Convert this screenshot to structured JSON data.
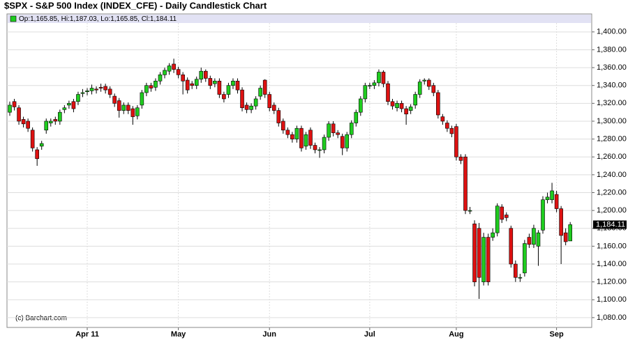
{
  "chart_data": {
    "type": "candlestick",
    "title": "$SPX - S&P 500 Index (INDEX_CFE) - Daily Candlestick Chart",
    "legend_text": "Op:1,165.85, Hi:1,187.03, Lo:1,165.85, Cl:1,184.11",
    "credit": "(c) Barchart.com",
    "last_label": "1,184.11",
    "up_color": "#1fcc1f",
    "down_color": "#dd1111",
    "grid": true,
    "ylim": [
      1069,
      1410
    ],
    "yticks": [
      {
        "value": 1080,
        "label": "1,080.00"
      },
      {
        "value": 1100,
        "label": "1,100.00"
      },
      {
        "value": 1120,
        "label": "1,120.00"
      },
      {
        "value": 1140,
        "label": "1,140.00"
      },
      {
        "value": 1160,
        "label": "1,160.00"
      },
      {
        "value": 1180,
        "label": "1,180.00"
      },
      {
        "value": 1200,
        "label": "1,200.00"
      },
      {
        "value": 1220,
        "label": "1,220.00"
      },
      {
        "value": 1240,
        "label": "1,240.00"
      },
      {
        "value": 1260,
        "label": "1,260.00"
      },
      {
        "value": 1280,
        "label": "1,280.00"
      },
      {
        "value": 1300,
        "label": "1,300.00"
      },
      {
        "value": 1320,
        "label": "1,320.00"
      },
      {
        "value": 1340,
        "label": "1,340.00"
      },
      {
        "value": 1360,
        "label": "1,360.00"
      },
      {
        "value": 1380,
        "label": "1,380.00"
      },
      {
        "value": 1400,
        "label": "1,400.00"
      }
    ],
    "categories": [
      null,
      null,
      null,
      null,
      null,
      null,
      null,
      null,
      null,
      null,
      null,
      null,
      null,
      null,
      null,
      null,
      null,
      "Apr 11",
      null,
      null,
      null,
      null,
      null,
      null,
      null,
      null,
      null,
      null,
      null,
      null,
      null,
      null,
      null,
      null,
      null,
      null,
      null,
      "May",
      null,
      null,
      null,
      null,
      null,
      null,
      null,
      null,
      null,
      null,
      null,
      null,
      null,
      null,
      null,
      null,
      null,
      null,
      null,
      "Jun",
      null,
      null,
      null,
      null,
      null,
      null,
      null,
      null,
      null,
      null,
      null,
      null,
      null,
      null,
      null,
      null,
      null,
      null,
      null,
      null,
      null,
      "Jul",
      null,
      null,
      null,
      null,
      null,
      null,
      null,
      null,
      null,
      null,
      null,
      null,
      null,
      null,
      null,
      null,
      null,
      null,
      "Aug",
      null,
      null,
      null,
      null,
      null,
      null,
      null,
      null,
      null,
      null,
      null,
      null,
      null,
      null,
      null,
      null,
      null,
      null,
      null,
      null,
      null,
      "Sep",
      null,
      null,
      null
    ],
    "open": [
      1310,
      1322,
      1315,
      1302,
      1300,
      1290,
      1268,
      1272,
      1290,
      1298,
      1302,
      1300,
      1313,
      1318,
      1322,
      1322,
      1331,
      1333,
      1334,
      1336,
      1338,
      1339,
      1336,
      1328,
      1323,
      1312,
      1318,
      1314,
      1306,
      1318,
      1332,
      1340,
      1338,
      1345,
      1352,
      1356,
      1364,
      1358,
      1352,
      1346,
      1342,
      1340,
      1347,
      1356,
      1348,
      1342,
      1345,
      1330,
      1330,
      1340,
      1345,
      1335,
      1318,
      1313,
      1317,
      1328,
      1346,
      1330,
      1318,
      1312,
      1300,
      1290,
      1285,
      1280,
      1292,
      1272,
      1290,
      1273,
      1268,
      1268,
      1282,
      1297,
      1287,
      1283,
      1270,
      1285,
      1298,
      1310,
      1325,
      1340,
      1340,
      1343,
      1355,
      1342,
      1322,
      1315,
      1320,
      1314,
      1312,
      1318,
      1330,
      1345,
      1346,
      1340,
      1332,
      1305,
      1298,
      1292,
      1294,
      1260,
      1260,
      1200,
      1185,
      1180,
      1120,
      1170,
      1170,
      1175,
      1204,
      1195,
      1180,
      1140,
      1125,
      1130,
      1170,
      1162,
      1160,
      1178,
      1212,
      1212,
      1218,
      1202,
      1175,
      1165.85
    ],
    "high": [
      1322,
      1325,
      1318,
      1305,
      1303,
      1293,
      1271,
      1278,
      1303,
      1303,
      1305,
      1313,
      1318,
      1323,
      1325,
      1333,
      1336,
      1337,
      1341,
      1339,
      1342,
      1342,
      1339,
      1331,
      1326,
      1321,
      1321,
      1317,
      1318,
      1335,
      1343,
      1343,
      1348,
      1355,
      1360,
      1365,
      1370,
      1361,
      1355,
      1349,
      1345,
      1350,
      1360,
      1358,
      1351,
      1348,
      1348,
      1333,
      1343,
      1348,
      1348,
      1338,
      1321,
      1320,
      1328,
      1340,
      1347,
      1333,
      1321,
      1315,
      1303,
      1293,
      1288,
      1295,
      1295,
      1288,
      1293,
      1276,
      1271,
      1285,
      1300,
      1300,
      1290,
      1286,
      1288,
      1301,
      1313,
      1328,
      1343,
      1343,
      1346,
      1358,
      1357,
      1345,
      1325,
      1323,
      1323,
      1317,
      1319,
      1333,
      1347,
      1348,
      1348,
      1343,
      1335,
      1308,
      1301,
      1295,
      1297,
      1263,
      1263,
      1204,
      1189,
      1186,
      1175,
      1174,
      1180,
      1208,
      1207,
      1198,
      1183,
      1144,
      1129,
      1167,
      1174,
      1184,
      1178,
      1216,
      1220,
      1231,
      1222,
      1205,
      1180,
      1187.03
    ],
    "low": [
      1306,
      1312,
      1296,
      1293,
      1288,
      1266,
      1250,
      1268,
      1286,
      1294,
      1296,
      1296,
      1309,
      1314,
      1310,
      1318,
      1327,
      1329,
      1330,
      1331,
      1333,
      1331,
      1326,
      1316,
      1304,
      1308,
      1308,
      1296,
      1302,
      1314,
      1328,
      1333,
      1334,
      1341,
      1348,
      1352,
      1354,
      1348,
      1330,
      1331,
      1336,
      1336,
      1343,
      1344,
      1336,
      1338,
      1326,
      1321,
      1326,
      1336,
      1331,
      1311,
      1309,
      1309,
      1313,
      1324,
      1326,
      1311,
      1308,
      1294,
      1286,
      1281,
      1276,
      1276,
      1266,
      1268,
      1269,
      1264,
      1259,
      1264,
      1278,
      1283,
      1281,
      1262,
      1266,
      1281,
      1294,
      1306,
      1321,
      1336,
      1336,
      1339,
      1338,
      1318,
      1313,
      1311,
      1310,
      1296,
      1308,
      1314,
      1326,
      1341,
      1335,
      1328,
      1303,
      1296,
      1288,
      1282,
      1256,
      1252,
      1196,
      1196,
      1115,
      1101,
      1116,
      1116,
      1166,
      1171,
      1186,
      1188,
      1136,
      1120,
      1120,
      1126,
      1158,
      1158,
      1138,
      1174,
      1208,
      1208,
      1198,
      1140,
      1161,
      1165.85
    ],
    "close": [
      1318,
      1316,
      1300,
      1297,
      1292,
      1270,
      1258,
      1275,
      1300,
      1300,
      1300,
      1310,
      1315,
      1320,
      1314,
      1330,
      1332,
      1334,
      1337,
      1335,
      1337,
      1335,
      1330,
      1320,
      1312,
      1318,
      1312,
      1305,
      1315,
      1332,
      1340,
      1337,
      1345,
      1352,
      1357,
      1362,
      1358,
      1352,
      1345,
      1335,
      1340,
      1347,
      1356,
      1348,
      1340,
      1345,
      1330,
      1325,
      1340,
      1345,
      1335,
      1315,
      1313,
      1317,
      1325,
      1337,
      1330,
      1315,
      1312,
      1298,
      1290,
      1285,
      1280,
      1292,
      1270,
      1285,
      1273,
      1268,
      1268,
      1282,
      1297,
      1287,
      1285,
      1270,
      1285,
      1298,
      1310,
      1325,
      1340,
      1340,
      1343,
      1355,
      1342,
      1322,
      1317,
      1320,
      1314,
      1308,
      1316,
      1330,
      1344,
      1346,
      1339,
      1332,
      1307,
      1300,
      1292,
      1286,
      1260,
      1256,
      1200,
      1200,
      1120,
      1125,
      1170,
      1120,
      1175,
      1205,
      1190,
      1192,
      1140,
      1125,
      1125,
      1163,
      1162,
      1180,
      1175,
      1212,
      1215,
      1222,
      1202,
      1172,
      1165,
      1184.11
    ]
  }
}
